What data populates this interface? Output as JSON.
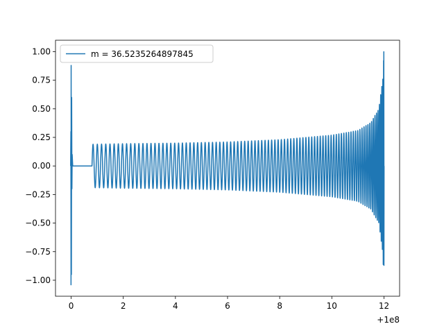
{
  "chart_data": {
    "type": "line",
    "title": "",
    "xlabel": "",
    "ylabel": "",
    "x_offset_label": "+1e8",
    "xlim": [
      -0.6,
      12.6
    ],
    "ylim": [
      -1.14,
      1.1
    ],
    "grid": false,
    "legend_position": "upper left",
    "x_ticks": [
      0,
      2,
      4,
      6,
      8,
      10,
      12
    ],
    "x_tick_labels": [
      "0",
      "2",
      "4",
      "6",
      "8",
      "10",
      "12"
    ],
    "y_ticks": [
      -1.0,
      -0.75,
      -0.5,
      -0.25,
      0.0,
      0.25,
      0.5,
      0.75,
      1.0
    ],
    "y_tick_labels": [
      "−1.00",
      "−0.75",
      "−0.50",
      "−0.25",
      "0.00",
      "0.25",
      "0.50",
      "0.75",
      "1.00"
    ],
    "series": [
      {
        "name": "m = 36.5235264897845",
        "color": "#1f77b4",
        "description_points": {
          "initial_burst": {
            "x_range": [
              -0.02,
              0.04
            ],
            "y_min": -1.04,
            "y_max": 0.88
          },
          "flat_segment": {
            "x_range": [
              0.04,
              0.8
            ],
            "y": 0.0
          },
          "oscillation_start": {
            "x": 0.8,
            "amplitude": 0.19
          },
          "envelope": [
            {
              "x": 0.8,
              "amp": 0.19
            },
            {
              "x": 2,
              "amp": 0.195
            },
            {
              "x": 4,
              "amp": 0.2
            },
            {
              "x": 6,
              "amp": 0.21
            },
            {
              "x": 8,
              "amp": 0.23
            },
            {
              "x": 10,
              "amp": 0.27
            },
            {
              "x": 11,
              "amp": 0.31
            },
            {
              "x": 11.5,
              "amp": 0.38
            },
            {
              "x": 11.8,
              "amp": 0.5
            },
            {
              "x": 11.95,
              "amp": 0.75
            },
            {
              "x": 12.0,
              "amp_top": 1.0,
              "amp_bottom": -0.87
            }
          ],
          "cycles_approx": 95
        }
      }
    ]
  }
}
